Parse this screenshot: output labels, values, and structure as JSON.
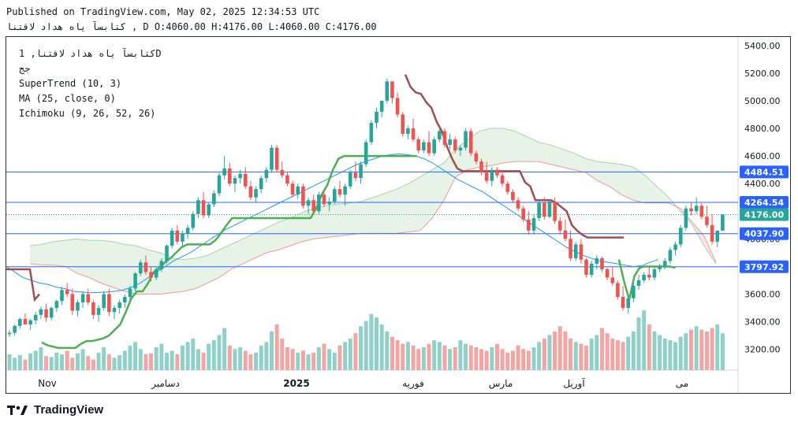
{
  "header": {
    "published": "Published on TradingView.com, May 02, 2025 12:34:53 UTC",
    "ohlc": "کتابسآ یاه هداد لاقتنا , D O:4060.00 H:4176.00 L:4060.00 C:4176.00"
  },
  "legend": {
    "symbol": "کتابسآ یاه هداد لاقتنا, 1D",
    "sub": "جج",
    "supertrend": "SuperTrend (10, 3)",
    "ma": "MA (25, close, 0)",
    "ichimoku": "Ichimoku (9, 26, 52, 26)"
  },
  "branding": {
    "logo_text": "TradingView"
  },
  "colors": {
    "up": "#26a69a",
    "down": "#ef5350",
    "vol_up": "#8fd1c9",
    "vol_down": "#f2a5a3",
    "supertrend_up": "#4caf50",
    "supertrend_down": "#a04e50",
    "ma": "#2196f3",
    "cloud_green": "#e6f3e6",
    "cloud_red": "#fde4e4",
    "hline": "#2962ff",
    "tag": "#2962ff"
  },
  "chart_data": {
    "type": "candlestick",
    "y_axis": {
      "min": 3050,
      "max": 5450,
      "ticks": [
        5400,
        5200,
        5000,
        4800,
        4600,
        4400,
        4200,
        4000,
        3800,
        3600,
        3400,
        3200
      ]
    },
    "x_axis_labels": [
      "Nov",
      "دسامبر",
      "2025",
      "فوریه",
      "مارس",
      "آوریل",
      "می"
    ],
    "horizontal_levels": [
      {
        "label": "4484.51",
        "value": 4484.51
      },
      {
        "label": "4264.54",
        "value": 4264.54
      },
      {
        "label": "4037.90",
        "value": 4037.9
      },
      {
        "label": "3797.92",
        "value": 3797.92
      }
    ],
    "last_price": {
      "label": "4176.00",
      "value": 4176
    },
    "candles": [
      [
        3310,
        3340,
        3290,
        3320
      ],
      [
        3320,
        3380,
        3300,
        3370
      ],
      [
        3370,
        3430,
        3350,
        3420
      ],
      [
        3420,
        3460,
        3400,
        3380
      ],
      [
        3380,
        3420,
        3340,
        3410
      ],
      [
        3410,
        3470,
        3380,
        3450
      ],
      [
        3450,
        3510,
        3420,
        3490
      ],
      [
        3490,
        3530,
        3400,
        3430
      ],
      [
        3430,
        3510,
        3410,
        3500
      ],
      [
        3500,
        3560,
        3470,
        3550
      ],
      [
        3550,
        3650,
        3520,
        3630
      ],
      [
        3630,
        3680,
        3580,
        3600
      ],
      [
        3600,
        3640,
        3450,
        3480
      ],
      [
        3480,
        3560,
        3440,
        3540
      ],
      [
        3540,
        3620,
        3500,
        3600
      ],
      [
        3600,
        3640,
        3520,
        3540
      ],
      [
        3540,
        3560,
        3420,
        3450
      ],
      [
        3450,
        3520,
        3400,
        3500
      ],
      [
        3500,
        3620,
        3480,
        3600
      ],
      [
        3600,
        3640,
        3440,
        3470
      ],
      [
        3470,
        3520,
        3420,
        3500
      ],
      [
        3500,
        3560,
        3460,
        3540
      ],
      [
        3540,
        3600,
        3500,
        3580
      ],
      [
        3580,
        3660,
        3550,
        3640
      ],
      [
        3640,
        3760,
        3620,
        3750
      ],
      [
        3750,
        3850,
        3730,
        3830
      ],
      [
        3830,
        3880,
        3740,
        3760
      ],
      [
        3760,
        3800,
        3690,
        3720
      ],
      [
        3720,
        3800,
        3700,
        3780
      ],
      [
        3780,
        3860,
        3760,
        3840
      ],
      [
        3840,
        3960,
        3820,
        3950
      ],
      [
        3950,
        4080,
        3930,
        4060
      ],
      [
        4060,
        4100,
        3960,
        3980
      ],
      [
        3980,
        4060,
        3940,
        4040
      ],
      [
        4040,
        4100,
        4000,
        4080
      ],
      [
        4080,
        4200,
        4060,
        4180
      ],
      [
        4180,
        4300,
        4150,
        4280
      ],
      [
        4280,
        4340,
        4150,
        4170
      ],
      [
        4170,
        4260,
        4150,
        4250
      ],
      [
        4250,
        4350,
        4230,
        4330
      ],
      [
        4330,
        4480,
        4310,
        4460
      ],
      [
        4460,
        4600,
        4430,
        4510
      ],
      [
        4510,
        4550,
        4380,
        4400
      ],
      [
        4400,
        4460,
        4340,
        4440
      ],
      [
        4440,
        4500,
        4400,
        4470
      ],
      [
        4470,
        4520,
        4360,
        4380
      ],
      [
        4380,
        4420,
        4280,
        4300
      ],
      [
        4300,
        4380,
        4260,
        4360
      ],
      [
        4360,
        4460,
        4330,
        4440
      ],
      [
        4440,
        4520,
        4410,
        4500
      ],
      [
        4500,
        4680,
        4480,
        4660
      ],
      [
        4660,
        4680,
        4480,
        4500
      ],
      [
        4500,
        4560,
        4440,
        4460
      ],
      [
        4460,
        4480,
        4380,
        4400
      ],
      [
        4400,
        4420,
        4300,
        4320
      ],
      [
        4320,
        4400,
        4290,
        4380
      ],
      [
        4380,
        4400,
        4220,
        4240
      ],
      [
        4240,
        4300,
        4180,
        4280
      ],
      [
        4280,
        4320,
        4180,
        4200
      ],
      [
        4200,
        4340,
        4180,
        4320
      ],
      [
        4320,
        4360,
        4230,
        4250
      ],
      [
        4250,
        4300,
        4200,
        4270
      ],
      [
        4270,
        4380,
        4250,
        4360
      ],
      [
        4360,
        4420,
        4300,
        4320
      ],
      [
        4320,
        4400,
        4240,
        4380
      ],
      [
        4380,
        4500,
        4360,
        4480
      ],
      [
        4480,
        4560,
        4420,
        4440
      ],
      [
        4440,
        4560,
        4400,
        4540
      ],
      [
        4540,
        4720,
        4520,
        4700
      ],
      [
        4700,
        4860,
        4680,
        4840
      ],
      [
        4840,
        4950,
        4800,
        4920
      ],
      [
        4920,
        5000,
        4880,
        5000
      ],
      [
        5000,
        5160,
        4980,
        5140
      ],
      [
        5140,
        5140,
        4980,
        5020
      ],
      [
        5020,
        5060,
        4880,
        4900
      ],
      [
        4900,
        4920,
        4740,
        4760
      ],
      [
        4760,
        4820,
        4720,
        4800
      ],
      [
        4800,
        4870,
        4700,
        4720
      ],
      [
        4720,
        4740,
        4620,
        4640
      ],
      [
        4640,
        4720,
        4620,
        4700
      ],
      [
        4700,
        4780,
        4600,
        4620
      ],
      [
        4620,
        4740,
        4600,
        4720
      ],
      [
        4720,
        4800,
        4700,
        4780
      ],
      [
        4780,
        4800,
        4660,
        4680
      ],
      [
        4680,
        4760,
        4650,
        4720
      ],
      [
        4720,
        4740,
        4620,
        4640
      ],
      [
        4640,
        4680,
        4600,
        4660
      ],
      [
        4660,
        4800,
        4640,
        4780
      ],
      [
        4780,
        4800,
        4600,
        4620
      ],
      [
        4620,
        4640,
        4540,
        4560
      ],
      [
        4560,
        4580,
        4460,
        4480
      ],
      [
        4480,
        4560,
        4400,
        4420
      ],
      [
        4420,
        4520,
        4380,
        4500
      ],
      [
        4500,
        4520,
        4440,
        4460
      ],
      [
        4460,
        4500,
        4380,
        4400
      ],
      [
        4400,
        4420,
        4320,
        4340
      ],
      [
        4340,
        4360,
        4260,
        4280
      ],
      [
        4280,
        4300,
        4200,
        4220
      ],
      [
        4220,
        4240,
        4120,
        4140
      ],
      [
        4140,
        4200,
        4030,
        4060
      ],
      [
        4060,
        4180,
        4030,
        4150
      ],
      [
        4150,
        4280,
        4130,
        4260
      ],
      [
        4260,
        4300,
        4140,
        4160
      ],
      [
        4160,
        4280,
        4150,
        4270
      ],
      [
        4270,
        4300,
        4110,
        4130
      ],
      [
        4130,
        4160,
        4030,
        4060
      ],
      [
        4060,
        4140,
        3980,
        4000
      ],
      [
        4000,
        4060,
        3840,
        3860
      ],
      [
        3860,
        3980,
        3840,
        3960
      ],
      [
        3960,
        4000,
        3820,
        3850
      ],
      [
        3850,
        3860,
        3720,
        3740
      ],
      [
        3740,
        3840,
        3720,
        3820
      ],
      [
        3820,
        3880,
        3780,
        3860
      ],
      [
        3860,
        3870,
        3760,
        3780
      ],
      [
        3780,
        3790,
        3700,
        3720
      ],
      [
        3720,
        3800,
        3660,
        3680
      ],
      [
        3680,
        3700,
        3560,
        3580
      ],
      [
        3580,
        3660,
        3480,
        3500
      ],
      [
        3500,
        3600,
        3460,
        3570
      ],
      [
        3570,
        3680,
        3540,
        3660
      ],
      [
        3660,
        3740,
        3630,
        3700
      ],
      [
        3700,
        3760,
        3680,
        3740
      ],
      [
        3740,
        3800,
        3700,
        3720
      ],
      [
        3720,
        3800,
        3700,
        3780
      ],
      [
        3780,
        3820,
        3760,
        3800
      ],
      [
        3800,
        3860,
        3780,
        3840
      ],
      [
        3840,
        3940,
        3820,
        3920
      ],
      [
        3920,
        3980,
        3880,
        3960
      ],
      [
        3960,
        4100,
        3940,
        4080
      ],
      [
        4080,
        4240,
        4060,
        4220
      ],
      [
        4220,
        4260,
        4170,
        4200
      ],
      [
        4200,
        4300,
        4180,
        4240
      ],
      [
        4240,
        4260,
        4140,
        4160
      ],
      [
        4160,
        4240,
        4080,
        4100
      ],
      [
        4100,
        4180,
        3960,
        3980
      ],
      [
        3980,
        4060,
        3940,
        4060
      ],
      [
        4060,
        4180,
        4060,
        4176
      ]
    ],
    "volume": [
      90,
      70,
      85,
      60,
      95,
      110,
      130,
      80,
      75,
      100,
      90,
      110,
      70,
      95,
      120,
      80,
      60,
      100,
      130,
      90,
      70,
      85,
      110,
      140,
      160,
      120,
      90,
      95,
      130,
      150,
      100,
      110,
      90,
      140,
      160,
      180,
      120,
      100,
      150,
      170,
      200,
      240,
      140,
      120,
      130,
      110,
      90,
      100,
      140,
      160,
      220,
      260,
      180,
      130,
      120,
      100,
      110,
      90,
      100,
      130,
      150,
      120,
      100,
      140,
      160,
      180,
      210,
      250,
      280,
      320,
      300,
      260,
      220,
      190,
      170,
      150,
      160,
      140,
      120,
      130,
      150,
      170,
      160,
      140,
      120,
      130,
      170,
      150,
      140,
      130,
      120,
      110,
      130,
      150,
      120,
      100,
      110,
      140,
      120,
      110,
      130,
      160,
      180,
      200,
      220,
      250,
      220,
      180,
      160,
      150,
      140,
      180,
      200,
      240,
      210,
      180,
      170,
      160,
      190,
      220,
      300,
      340,
      260,
      220,
      200,
      180,
      170,
      160,
      190,
      210,
      230,
      250,
      230,
      220,
      240,
      260,
      210
    ],
    "supertrend_up_1": [
      3250,
      3230,
      3220,
      3210,
      3210,
      3210,
      3210,
      3240,
      3260,
      3260,
      3270,
      3280,
      3300,
      3340,
      3380,
      3470,
      3570,
      3620,
      3620,
      3680,
      3760,
      3790,
      3830,
      3860,
      3900,
      3940,
      3960,
      3960,
      3960,
      3960,
      3960,
      3990,
      4040,
      4100,
      4150,
      4150,
      4150,
      4150,
      4150,
      4150,
      4150,
      4150,
      4150,
      4150,
      4150,
      4150,
      4150,
      4150,
      4150,
      4220,
      4320,
      4390,
      4500,
      4580,
      4600,
      4600,
      4600,
      4600,
      4600,
      4600,
      4600,
      4600,
      4600,
      4600,
      4600,
      4600,
      4600,
      4600
    ],
    "supertrend_down": [
      5190,
      5100,
      5060,
      5050,
      4990,
      4950,
      4850,
      4780,
      4670,
      4580,
      4510,
      4490,
      4490,
      4490,
      4490,
      4490,
      4490,
      4490,
      4490,
      4490,
      4490,
      4490,
      4490,
      4410,
      4380,
      4280,
      4280,
      4280,
      4280,
      4260,
      4230,
      4200,
      4100,
      4060,
      4030,
      4010,
      4010,
      4010,
      4010,
      4010,
      4010,
      4010,
      4010
    ],
    "supertrend_up_2": [
      3850,
      3690,
      3560,
      3730,
      3790,
      3800,
      3800,
      3800,
      3800,
      3800,
      3800,
      3790
    ],
    "ma": [
      3800,
      3760,
      3720,
      3700,
      3680,
      3670,
      3650,
      3640,
      3620,
      3615,
      3610,
      3612,
      3615,
      3620,
      3630,
      3650,
      3680,
      3720,
      3760,
      3800,
      3840,
      3870,
      3900,
      3940,
      3980,
      4020,
      4060,
      4090,
      4120,
      4150,
      4180,
      4210,
      4240,
      4270,
      4300,
      4330,
      4360,
      4390,
      4420,
      4450,
      4480,
      4510,
      4540,
      4560,
      4580,
      4600,
      4610,
      4615,
      4610,
      4600,
      4580,
      4550,
      4510,
      4470,
      4430,
      4400,
      4370,
      4340,
      4300,
      4260,
      4220,
      4180,
      4140,
      4100,
      4060,
      4020,
      3980,
      3940,
      3910,
      3880,
      3860,
      3840,
      3830,
      3820,
      3810,
      3800,
      3805,
      3830,
      3850
    ],
    "cloud_span_a": [
      3950,
      3960,
      3980,
      3990,
      4000,
      3990,
      3990,
      3980,
      3960,
      3950,
      3920,
      3900,
      3860,
      3850,
      3860,
      3880,
      3920,
      3960,
      4000,
      4040,
      4080,
      4120,
      4150,
      4190,
      4220,
      4240,
      4250,
      4260,
      4270,
      4300,
      4330,
      4360,
      4400,
      4450,
      4500,
      4550,
      4650,
      4720,
      4780,
      4800,
      4800,
      4780,
      4740,
      4700,
      4680,
      4650,
      4620,
      4580,
      4560,
      4550,
      4540,
      4520,
      4460,
      4380,
      4300,
      4200,
      4100,
      3950,
      3820
    ],
    "cloud_span_b": [
      3820,
      3810,
      3810,
      3800,
      3750,
      3720,
      3680,
      3650,
      3620,
      3600,
      3600,
      3600,
      3610,
      3620,
      3640,
      3680,
      3720,
      3780,
      3820,
      3860,
      3900,
      3920,
      3950,
      3980,
      4000,
      4010,
      4020,
      4030,
      4040,
      4040,
      4040,
      4040,
      4050,
      4060,
      4150,
      4280,
      4450,
      4500,
      4520,
      4530,
      4550,
      4560,
      4560,
      4560,
      4540,
      4520,
      4500,
      4480,
      4420,
      4380,
      4320,
      4280,
      4260,
      4260,
      4260,
      4220,
      4120,
      4020,
      3830
    ]
  }
}
